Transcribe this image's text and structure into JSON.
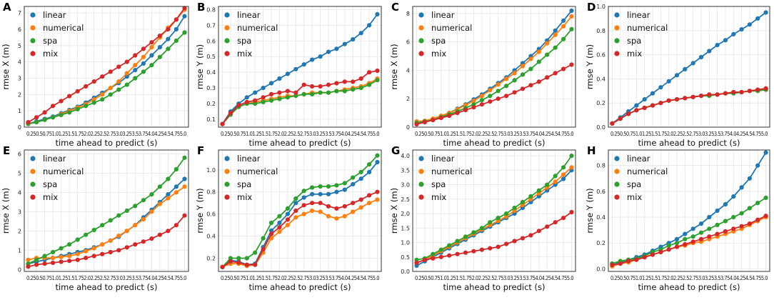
{
  "colors": {
    "linear": "#1f77b4",
    "numerical": "#ff7f0e",
    "spa": "#2ca02c",
    "mix": "#d62728",
    "grid": "#e6e6e6",
    "axis": "#333333"
  },
  "shared": {
    "xlabel": "time ahead to predict (s)",
    "x": [
      0.25,
      0.5,
      0.75,
      1.0,
      1.25,
      1.5,
      1.75,
      2.0,
      2.25,
      2.5,
      2.75,
      3.0,
      3.25,
      3.5,
      3.75,
      4.0,
      4.25,
      4.5,
      4.75,
      5.0
    ],
    "xtick_text": "0.250.50.751.01.251.51.752.02.252.52.753.03.253.53.754.04.254.54.755.0"
  },
  "chart_data": [
    {
      "panel": "A",
      "type": "line",
      "title": "",
      "xlabel": "time ahead to predict (s)",
      "ylabel": "rmse X  (m)",
      "ylim": [
        0,
        7.4
      ],
      "yticks": [
        0,
        1,
        2,
        3,
        4,
        5,
        6,
        7
      ],
      "legend": [
        "linear",
        "numerical",
        "spa",
        "mix"
      ],
      "series": [
        {
          "name": "linear",
          "values": [
            0.2,
            0.35,
            0.5,
            0.65,
            0.85,
            1.05,
            1.25,
            1.5,
            1.8,
            2.1,
            2.4,
            2.7,
            3.1,
            3.5,
            3.9,
            4.4,
            4.9,
            5.4,
            6.0,
            6.8
          ]
        },
        {
          "name": "numerical",
          "values": [
            0.2,
            0.3,
            0.45,
            0.6,
            0.8,
            1.0,
            1.2,
            1.4,
            1.7,
            2.0,
            2.4,
            2.8,
            3.3,
            3.8,
            4.3,
            4.9,
            5.5,
            6.1,
            6.6,
            7.2
          ]
        },
        {
          "name": "spa",
          "values": [
            0.2,
            0.3,
            0.45,
            0.6,
            0.75,
            0.9,
            1.1,
            1.3,
            1.5,
            1.7,
            2.0,
            2.3,
            2.6,
            3.0,
            3.4,
            3.8,
            4.3,
            4.8,
            5.3,
            5.8
          ]
        },
        {
          "name": "mix",
          "values": [
            0.3,
            0.6,
            0.9,
            1.3,
            1.6,
            1.9,
            2.2,
            2.5,
            2.8,
            3.1,
            3.4,
            3.7,
            4.0,
            4.4,
            4.8,
            5.2,
            5.6,
            6.0,
            6.6,
            7.3
          ]
        }
      ]
    },
    {
      "panel": "B",
      "type": "line",
      "title": "",
      "xlabel": "time ahead to predict (s)",
      "ylabel": "rmse Y  (m)",
      "ylim": [
        0.05,
        0.82
      ],
      "yticks": [
        0.1,
        0.2,
        0.3,
        0.4,
        0.5,
        0.6,
        0.7,
        0.8
      ],
      "legend": [
        "linear",
        "numerical",
        "spa",
        "mix"
      ],
      "series": [
        {
          "name": "linear",
          "values": [
            0.07,
            0.15,
            0.2,
            0.24,
            0.27,
            0.3,
            0.33,
            0.36,
            0.39,
            0.42,
            0.45,
            0.48,
            0.5,
            0.53,
            0.55,
            0.58,
            0.61,
            0.65,
            0.7,
            0.77
          ]
        },
        {
          "name": "numerical",
          "values": [
            0.07,
            0.13,
            0.18,
            0.2,
            0.21,
            0.22,
            0.23,
            0.24,
            0.25,
            0.25,
            0.26,
            0.27,
            0.27,
            0.27,
            0.28,
            0.29,
            0.3,
            0.31,
            0.33,
            0.36
          ]
        },
        {
          "name": "spa",
          "values": [
            0.07,
            0.13,
            0.18,
            0.2,
            0.2,
            0.21,
            0.22,
            0.23,
            0.24,
            0.25,
            0.26,
            0.26,
            0.27,
            0.27,
            0.28,
            0.28,
            0.29,
            0.3,
            0.32,
            0.35
          ]
        },
        {
          "name": "mix",
          "values": [
            0.07,
            0.14,
            0.19,
            0.21,
            0.22,
            0.24,
            0.26,
            0.27,
            0.28,
            0.27,
            0.32,
            0.31,
            0.31,
            0.32,
            0.33,
            0.34,
            0.34,
            0.36,
            0.4,
            0.41
          ]
        }
      ]
    },
    {
      "panel": "C",
      "type": "line",
      "title": "",
      "xlabel": "time ahead to predict (s)",
      "ylabel": "rmse X  (m)",
      "ylim": [
        0,
        8.5
      ],
      "yticks": [
        0,
        2,
        4,
        6,
        8
      ],
      "legend": [
        "linear",
        "numerical",
        "spa",
        "mix"
      ],
      "series": [
        {
          "name": "linear",
          "values": [
            0.3,
            0.4,
            0.55,
            0.75,
            1.0,
            1.3,
            1.6,
            1.95,
            2.3,
            2.7,
            3.1,
            3.5,
            4.0,
            4.5,
            5.0,
            5.5,
            6.1,
            6.8,
            7.5,
            8.2
          ]
        },
        {
          "name": "numerical",
          "values": [
            0.4,
            0.45,
            0.6,
            0.8,
            1.0,
            1.25,
            1.55,
            1.85,
            2.2,
            2.6,
            3.0,
            3.4,
            3.8,
            4.3,
            4.8,
            5.3,
            5.9,
            6.5,
            7.1,
            7.8
          ]
        },
        {
          "name": "spa",
          "values": [
            0.3,
            0.4,
            0.5,
            0.7,
            0.9,
            1.1,
            1.35,
            1.6,
            1.9,
            2.2,
            2.55,
            2.9,
            3.3,
            3.7,
            4.1,
            4.6,
            5.1,
            5.6,
            6.2,
            6.9
          ]
        },
        {
          "name": "mix",
          "values": [
            0.2,
            0.35,
            0.5,
            0.65,
            0.8,
            1.0,
            1.2,
            1.4,
            1.6,
            1.8,
            2.0,
            2.2,
            2.45,
            2.7,
            2.95,
            3.2,
            3.5,
            3.8,
            4.1,
            4.4
          ]
        }
      ]
    },
    {
      "panel": "D",
      "type": "line",
      "title": "",
      "xlabel": "time ahead to predict (s)",
      "ylabel": "rmse Y  (m)",
      "ylim": [
        0,
        1.0
      ],
      "yticks": [
        0.0,
        0.2,
        0.4,
        0.6,
        0.8,
        1.0
      ],
      "legend": [
        "linear",
        "numerical",
        "spa",
        "mix"
      ],
      "series": [
        {
          "name": "linear",
          "values": [
            0.03,
            0.08,
            0.13,
            0.18,
            0.23,
            0.28,
            0.33,
            0.38,
            0.43,
            0.48,
            0.53,
            0.58,
            0.63,
            0.68,
            0.72,
            0.77,
            0.81,
            0.85,
            0.9,
            0.95
          ]
        },
        {
          "name": "numerical",
          "values": [
            0.03,
            0.07,
            0.11,
            0.14,
            0.16,
            0.18,
            0.2,
            0.22,
            0.23,
            0.24,
            0.25,
            0.26,
            0.27,
            0.27,
            0.28,
            0.29,
            0.29,
            0.3,
            0.31,
            0.32
          ]
        },
        {
          "name": "spa",
          "values": [
            0.03,
            0.07,
            0.11,
            0.14,
            0.16,
            0.18,
            0.2,
            0.22,
            0.23,
            0.24,
            0.25,
            0.26,
            0.26,
            0.27,
            0.28,
            0.28,
            0.29,
            0.3,
            0.3,
            0.31
          ]
        },
        {
          "name": "mix",
          "values": [
            0.03,
            0.07,
            0.11,
            0.14,
            0.16,
            0.18,
            0.2,
            0.22,
            0.23,
            0.24,
            0.25,
            0.26,
            0.27,
            0.27,
            0.28,
            0.29,
            0.29,
            0.3,
            0.31,
            0.32
          ]
        }
      ]
    },
    {
      "panel": "E",
      "type": "line",
      "title": "",
      "xlabel": "time ahead to predict (s)",
      "ylabel": "rmse X  (m)",
      "ylim": [
        -0.1,
        6.2
      ],
      "yticks": [
        0,
        1,
        2,
        3,
        4,
        5,
        6
      ],
      "legend": [
        "linear",
        "numerical",
        "spa",
        "mix"
      ],
      "series": [
        {
          "name": "linear",
          "values": [
            0.3,
            0.4,
            0.5,
            0.6,
            0.7,
            0.8,
            0.9,
            1.0,
            1.15,
            1.3,
            1.5,
            1.7,
            2.0,
            2.3,
            2.7,
            3.1,
            3.5,
            3.9,
            4.3,
            4.7
          ]
        },
        {
          "name": "numerical",
          "values": [
            0.5,
            0.6,
            0.6,
            0.6,
            0.65,
            0.7,
            0.8,
            0.95,
            1.1,
            1.3,
            1.5,
            1.75,
            2.0,
            2.3,
            2.6,
            3.0,
            3.4,
            3.7,
            4.0,
            4.3
          ]
        },
        {
          "name": "spa",
          "values": [
            0.3,
            0.5,
            0.7,
            0.9,
            1.1,
            1.3,
            1.55,
            1.8,
            2.05,
            2.3,
            2.55,
            2.8,
            3.05,
            3.3,
            3.6,
            3.9,
            4.3,
            4.7,
            5.2,
            5.8
          ]
        },
        {
          "name": "mix",
          "values": [
            0.15,
            0.25,
            0.3,
            0.35,
            0.4,
            0.45,
            0.5,
            0.6,
            0.7,
            0.8,
            0.9,
            1.0,
            1.15,
            1.3,
            1.45,
            1.6,
            1.8,
            2.0,
            2.3,
            2.8
          ]
        }
      ]
    },
    {
      "panel": "F",
      "type": "line",
      "title": "",
      "xlabel": "time ahead to predict (s)",
      "ylabel": "rmse Y  (m)",
      "ylim": [
        0.08,
        1.18
      ],
      "yticks": [
        0.2,
        0.4,
        0.6,
        0.8,
        1.0
      ],
      "legend": [
        "linear",
        "numerical",
        "spa",
        "mix"
      ],
      "series": [
        {
          "name": "linear",
          "values": [
            0.12,
            0.18,
            0.17,
            0.14,
            0.15,
            0.3,
            0.45,
            0.52,
            0.6,
            0.7,
            0.75,
            0.78,
            0.78,
            0.78,
            0.8,
            0.82,
            0.87,
            0.92,
            0.98,
            1.07
          ]
        },
        {
          "name": "numerical",
          "values": [
            0.12,
            0.15,
            0.15,
            0.13,
            0.14,
            0.25,
            0.38,
            0.44,
            0.5,
            0.57,
            0.6,
            0.63,
            0.62,
            0.58,
            0.56,
            0.58,
            0.62,
            0.66,
            0.7,
            0.73
          ]
        },
        {
          "name": "spa",
          "values": [
            0.12,
            0.2,
            0.2,
            0.2,
            0.25,
            0.38,
            0.52,
            0.58,
            0.65,
            0.74,
            0.81,
            0.84,
            0.85,
            0.85,
            0.86,
            0.88,
            0.93,
            0.98,
            1.05,
            1.13
          ]
        },
        {
          "name": "mix",
          "values": [
            0.12,
            0.17,
            0.16,
            0.14,
            0.14,
            0.28,
            0.42,
            0.48,
            0.55,
            0.63,
            0.68,
            0.7,
            0.7,
            0.67,
            0.65,
            0.67,
            0.7,
            0.73,
            0.77,
            0.8
          ]
        }
      ]
    },
    {
      "panel": "G",
      "type": "line",
      "title": "",
      "xlabel": "time ahead to predict (s)",
      "ylabel": "rmse X  (m)",
      "ylim": [
        0,
        4.2
      ],
      "yticks": [
        0.0,
        0.5,
        1.0,
        1.5,
        2.0,
        2.5,
        3.0,
        3.5,
        4.0
      ],
      "legend": [
        "linear",
        "numerical",
        "spa",
        "mix"
      ],
      "series": [
        {
          "name": "linear",
          "values": [
            0.2,
            0.35,
            0.5,
            0.65,
            0.8,
            0.95,
            1.1,
            1.25,
            1.4,
            1.55,
            1.7,
            1.85,
            2.0,
            2.2,
            2.4,
            2.6,
            2.8,
            3.0,
            3.2,
            3.5
          ]
        },
        {
          "name": "numerical",
          "values": [
            0.3,
            0.4,
            0.55,
            0.7,
            0.85,
            1.0,
            1.15,
            1.3,
            1.45,
            1.6,
            1.75,
            1.9,
            2.1,
            2.3,
            2.5,
            2.7,
            2.9,
            3.1,
            3.35,
            3.6
          ]
        },
        {
          "name": "spa",
          "values": [
            0.4,
            0.45,
            0.6,
            0.75,
            0.9,
            1.05,
            1.2,
            1.35,
            1.5,
            1.7,
            1.85,
            2.0,
            2.2,
            2.4,
            2.6,
            2.8,
            3.0,
            3.3,
            3.6,
            4.0
          ]
        },
        {
          "name": "mix",
          "values": [
            0.3,
            0.4,
            0.45,
            0.5,
            0.55,
            0.6,
            0.65,
            0.7,
            0.75,
            0.8,
            0.85,
            0.95,
            1.05,
            1.15,
            1.25,
            1.4,
            1.55,
            1.7,
            1.85,
            2.05
          ]
        }
      ]
    },
    {
      "panel": "H",
      "type": "line",
      "title": "",
      "xlabel": "time ahead to predict (s)",
      "ylabel": "rmse Y  (m)",
      "ylim": [
        -0.02,
        0.92
      ],
      "yticks": [
        0.0,
        0.2,
        0.4,
        0.6,
        0.8
      ],
      "legend": [
        "linear",
        "numerical",
        "spa",
        "mix"
      ],
      "series": [
        {
          "name": "linear",
          "values": [
            0.04,
            0.05,
            0.07,
            0.09,
            0.11,
            0.14,
            0.17,
            0.2,
            0.23,
            0.27,
            0.31,
            0.35,
            0.4,
            0.45,
            0.5,
            0.56,
            0.63,
            0.7,
            0.8,
            0.9
          ]
        },
        {
          "name": "numerical",
          "values": [
            0.02,
            0.04,
            0.05,
            0.07,
            0.09,
            0.11,
            0.13,
            0.15,
            0.17,
            0.18,
            0.2,
            0.21,
            0.23,
            0.25,
            0.27,
            0.29,
            0.31,
            0.34,
            0.37,
            0.4
          ]
        },
        {
          "name": "spa",
          "values": [
            0.04,
            0.06,
            0.07,
            0.08,
            0.1,
            0.13,
            0.15,
            0.18,
            0.2,
            0.23,
            0.25,
            0.28,
            0.31,
            0.34,
            0.37,
            0.4,
            0.43,
            0.47,
            0.51,
            0.55
          ]
        },
        {
          "name": "mix",
          "values": [
            0.03,
            0.04,
            0.06,
            0.07,
            0.09,
            0.11,
            0.13,
            0.15,
            0.17,
            0.19,
            0.21,
            0.23,
            0.25,
            0.27,
            0.29,
            0.31,
            0.33,
            0.35,
            0.38,
            0.41
          ]
        }
      ]
    }
  ]
}
